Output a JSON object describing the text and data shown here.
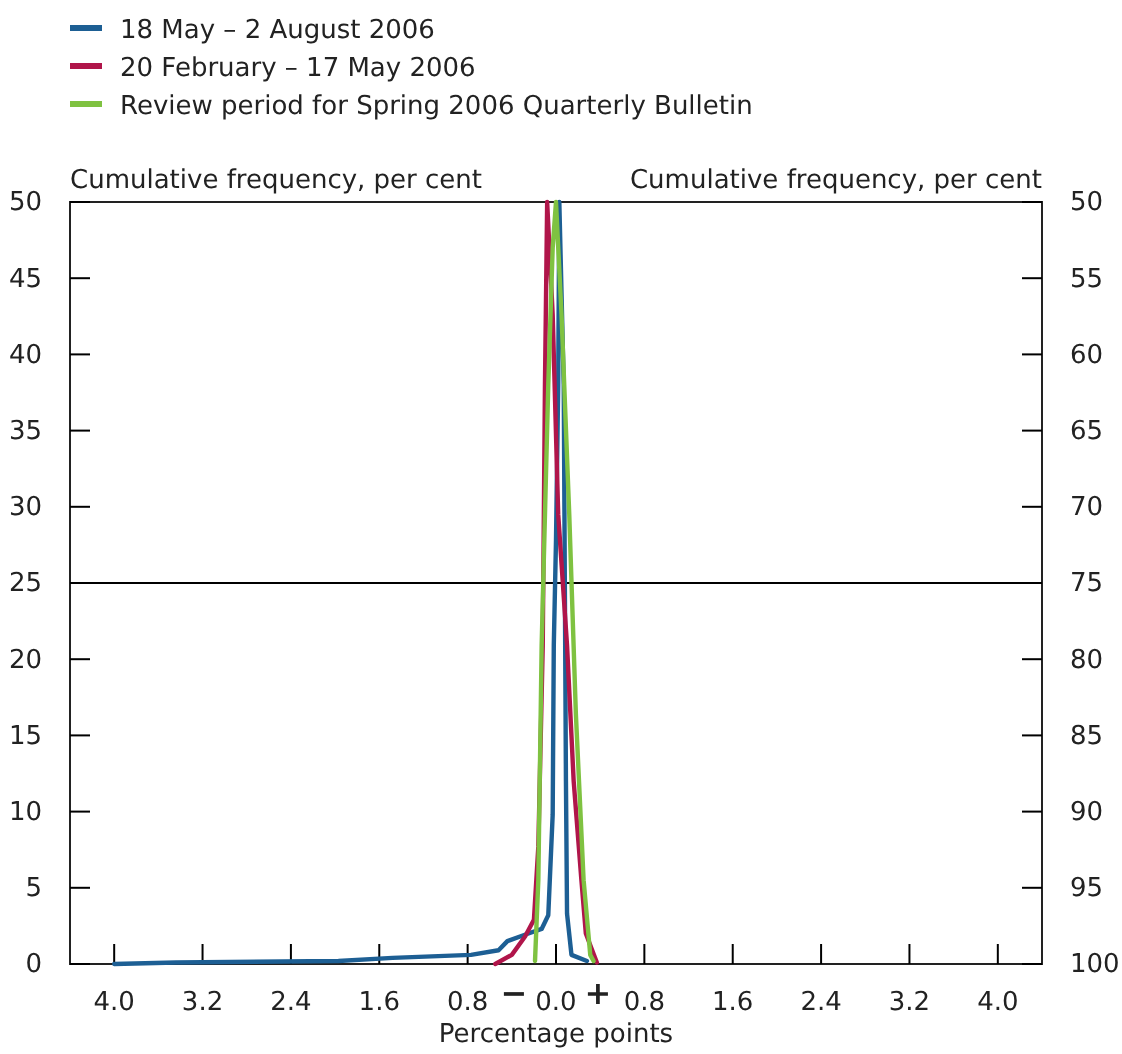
{
  "chart_data": {
    "type": "line",
    "xlabel": "Percentage points",
    "ylabel": "Cumulative frequency, per cent",
    "y2label": "Cumulative frequency, per cent",
    "annotations": [
      "−",
      "+"
    ],
    "xlim": [
      -4.4,
      4.4
    ],
    "xticks": [
      {
        "value": -4,
        "label": "4.0"
      },
      {
        "value": -3.2,
        "label": "3.2"
      },
      {
        "value": -2.4,
        "label": "2.4"
      },
      {
        "value": -1.6,
        "label": "1.6"
      },
      {
        "value": -0.8,
        "label": "0.8"
      },
      {
        "value": 0,
        "label": "0.0"
      },
      {
        "value": 0.8,
        "label": "0.8"
      },
      {
        "value": 1.6,
        "label": "1.6"
      },
      {
        "value": 2.4,
        "label": "2.4"
      },
      {
        "value": 3.2,
        "label": "3.2"
      },
      {
        "value": 4,
        "label": "4.0"
      }
    ],
    "ylim": [
      0,
      50
    ],
    "yticks": [
      0,
      5,
      10,
      15,
      20,
      25,
      30,
      35,
      40,
      45,
      50
    ],
    "y2lim": [
      100,
      50
    ],
    "y2ticks": [
      100,
      95,
      90,
      85,
      80,
      75,
      70,
      65,
      60,
      55,
      50
    ],
    "ref_lines": [
      {
        "axis": "y",
        "value": 25,
        "color": "#000000"
      }
    ],
    "legend": "top left",
    "grid": false,
    "marker": "none",
    "line_style": "solid",
    "series": [
      {
        "name": "18 May – 2 August 2006",
        "color": "#1d5f94",
        "x": [
          -4.0,
          -3.44,
          -1.97,
          -1.48,
          -0.77,
          -0.52,
          -0.44,
          -0.25,
          -0.13,
          -0.07,
          -0.03,
          -0.02,
          0.0,
          0.02,
          0.03,
          0.07,
          0.08,
          0.09,
          0.1,
          0.14,
          0.28
        ],
        "values": [
          0,
          0.1,
          0.2,
          0.4,
          0.6,
          0.9,
          1.5,
          2.0,
          2.3,
          3.2,
          9.8,
          20.9,
          27.8,
          38,
          50,
          38,
          25,
          12,
          3.3,
          0.6,
          0.2
        ]
      },
      {
        "name": "20 February – 17 May 2006",
        "color": "#b0154a",
        "x": [
          -0.55,
          -0.4,
          -0.28,
          -0.2,
          -0.16,
          -0.12,
          -0.1,
          -0.08,
          -0.03,
          0.02,
          0.1,
          0.16,
          0.23,
          0.27,
          0.37
        ],
        "values": [
          0,
          0.6,
          1.8,
          2.9,
          7.7,
          20.9,
          38,
          50,
          42.6,
          29.5,
          20.9,
          12,
          5.5,
          2,
          0.1
        ]
      },
      {
        "name": "Review period for Spring 2006 Quarterly Bulletin",
        "color": "#7fc241",
        "x": [
          -0.19,
          -0.16,
          -0.13,
          -0.07,
          -0.03,
          0.0,
          0.05,
          0.12,
          0.18,
          0.25,
          0.31,
          0.34
        ],
        "values": [
          0.2,
          5.5,
          20.9,
          38,
          47,
          50,
          42.6,
          29.5,
          16.4,
          5.5,
          0.6,
          0.2
        ]
      }
    ]
  }
}
